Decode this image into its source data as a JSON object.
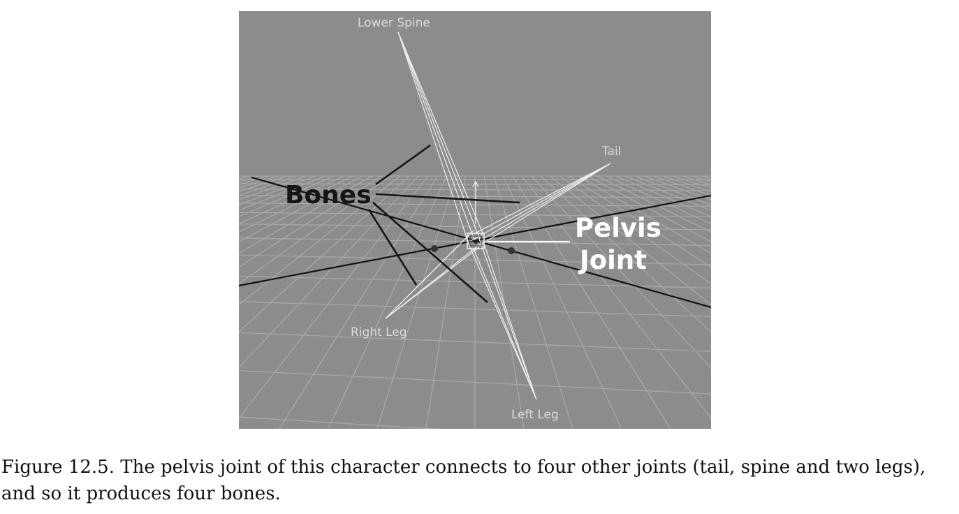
{
  "figure": {
    "labels": {
      "lower_spine": "Lower Spine",
      "tail": "Tail",
      "right_leg": "Right Leg",
      "left_leg": "Left Leg"
    },
    "callouts": {
      "bones": "Bones",
      "pelvis_line1": "Pelvis",
      "pelvis_line2": "Joint"
    },
    "colors": {
      "background": "#8c8c8c",
      "grid": "#a8a8a8",
      "bone_wire": "#f0f0f0",
      "axis": "#111111"
    }
  },
  "caption": {
    "text": "Figure 12.5. The pelvis joint of this character connects to four other joints (tail, spine and two legs), and so it produces four bones."
  }
}
